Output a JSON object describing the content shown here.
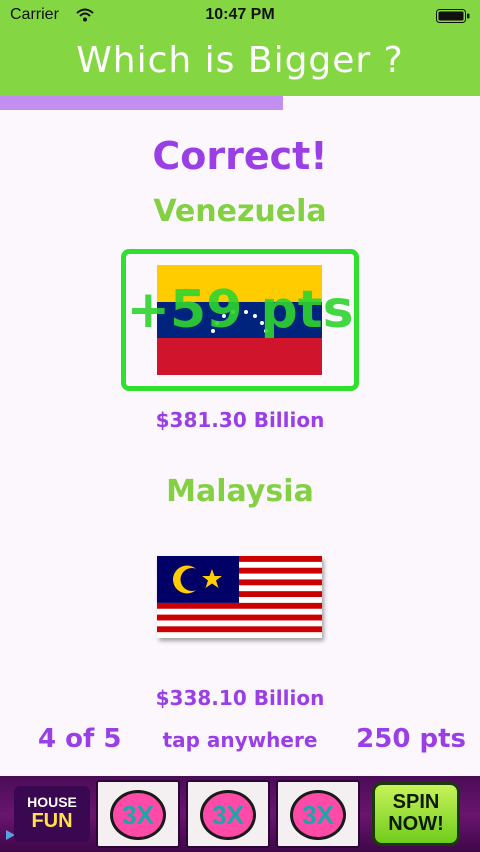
{
  "status_bar": {
    "carrier": "Carrier",
    "time": "10:47 PM"
  },
  "app": {
    "title": "Which is Bigger ?"
  },
  "progress": {
    "fraction": 0.59
  },
  "result": {
    "text": "Correct!",
    "points_awarded": "+59 pts"
  },
  "countries": [
    {
      "name": "Venezuela",
      "value": "$381.30 Billion",
      "flag": "venezuela-flag"
    },
    {
      "name": "Malaysia",
      "value": "$338.10 Billion",
      "flag": "malaysia-flag"
    }
  ],
  "footer": {
    "counter": "4 of 5",
    "hint": "tap anywhere",
    "score": "250 pts"
  },
  "ad": {
    "logo_top": "HOUSE",
    "logo_bottom": "FUN",
    "reels": [
      "3X",
      "3X",
      "3X"
    ],
    "button": "SPIN NOW!"
  },
  "colors": {
    "header_green": "#84d743",
    "accent_purple": "#9a3fe6",
    "name_green": "#84d043",
    "frame_green": "#2fe02f"
  }
}
